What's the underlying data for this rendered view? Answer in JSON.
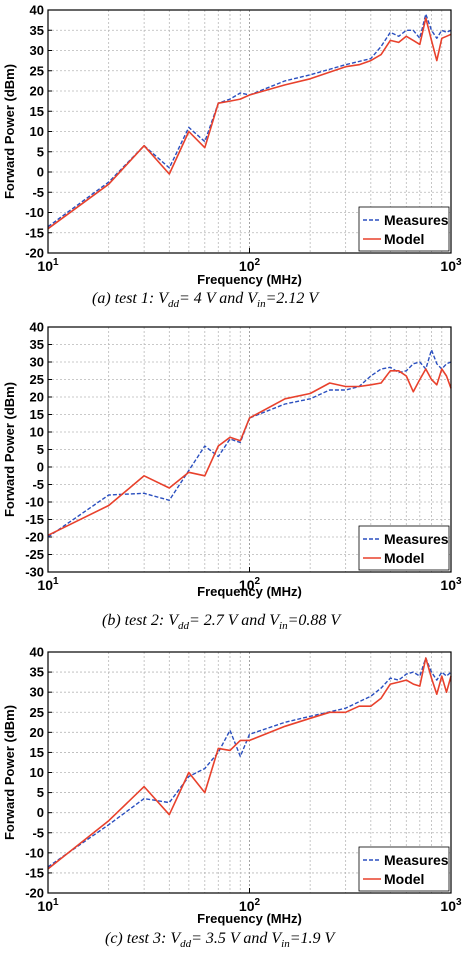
{
  "chart_data": [
    {
      "type": "line",
      "panel": "a",
      "ylabel": "Forward Power (dBm)",
      "xlabel": "Frequency (MHz)",
      "xscale": "log",
      "xlim": [
        10,
        1000
      ],
      "ylim": [
        -20,
        40
      ],
      "yticks": [
        -20,
        -15,
        -10,
        -5,
        0,
        5,
        10,
        15,
        20,
        25,
        30,
        35,
        40
      ],
      "grid": true,
      "legend_position": "bottom-right",
      "series": [
        {
          "name": "Measures",
          "color": "#2a4fbf",
          "style": "dashed",
          "points": [
            [
              10,
              -13.5
            ],
            [
              20,
              -2.5
            ],
            [
              30,
              6.5
            ],
            [
              40,
              1
            ],
            [
              50,
              11
            ],
            [
              60,
              7.5
            ],
            [
              70,
              17
            ],
            [
              80,
              18
            ],
            [
              90,
              19.5
            ],
            [
              100,
              19
            ],
            [
              150,
              22.5
            ],
            [
              200,
              24
            ],
            [
              300,
              26.5
            ],
            [
              400,
              28
            ],
            [
              450,
              31
            ],
            [
              500,
              34.5
            ],
            [
              550,
              33.5
            ],
            [
              600,
              35
            ],
            [
              650,
              35
            ],
            [
              700,
              33
            ],
            [
              750,
              39
            ],
            [
              800,
              35
            ],
            [
              850,
              33
            ],
            [
              900,
              35
            ],
            [
              950,
              34.5
            ],
            [
              1000,
              35
            ]
          ]
        },
        {
          "name": "Model",
          "color": "#e8412c",
          "style": "solid",
          "points": [
            [
              10,
              -14
            ],
            [
              20,
              -3
            ],
            [
              30,
              6.5
            ],
            [
              40,
              -0.5
            ],
            [
              50,
              10
            ],
            [
              60,
              6
            ],
            [
              70,
              17
            ],
            [
              80,
              17.5
            ],
            [
              90,
              18
            ],
            [
              100,
              19
            ],
            [
              150,
              21.5
            ],
            [
              200,
              23
            ],
            [
              300,
              26
            ],
            [
              350,
              26.5
            ],
            [
              400,
              27.5
            ],
            [
              450,
              29
            ],
            [
              500,
              32.5
            ],
            [
              550,
              32
            ],
            [
              600,
              33.5
            ],
            [
              650,
              32.5
            ],
            [
              700,
              31.5
            ],
            [
              750,
              38
            ],
            [
              800,
              32.5
            ],
            [
              850,
              27.5
            ],
            [
              900,
              33
            ],
            [
              950,
              33.5
            ],
            [
              1000,
              34
            ]
          ]
        }
      ],
      "caption": {
        "label": "(a)",
        "text": "test 1: ",
        "v1": "V",
        "v1_sub": "dd",
        "v1_val": "= 4 V and ",
        "v2": "V",
        "v2_sub": "in",
        "v2_val": "=2.12 V"
      }
    },
    {
      "type": "line",
      "panel": "b",
      "ylabel": "Forward Power (dBm)",
      "xlabel": "Frequency (MHz)",
      "xscale": "log",
      "xlim": [
        10,
        1000
      ],
      "ylim": [
        -30,
        40
      ],
      "yticks": [
        -30,
        -25,
        -20,
        -15,
        -10,
        -5,
        0,
        5,
        10,
        15,
        20,
        25,
        30,
        35,
        40
      ],
      "grid": true,
      "legend_position": "bottom-right",
      "series": [
        {
          "name": "Measures",
          "color": "#2a4fbf",
          "style": "dashed",
          "points": [
            [
              10,
              -20
            ],
            [
              20,
              -8
            ],
            [
              30,
              -7.5
            ],
            [
              40,
              -9.5
            ],
            [
              50,
              -1
            ],
            [
              60,
              6
            ],
            [
              70,
              3
            ],
            [
              80,
              8
            ],
            [
              90,
              7
            ],
            [
              100,
              14
            ],
            [
              150,
              18
            ],
            [
              200,
              19.5
            ],
            [
              250,
              22
            ],
            [
              300,
              22
            ],
            [
              350,
              23
            ],
            [
              400,
              26
            ],
            [
              450,
              28
            ],
            [
              500,
              28.5
            ],
            [
              550,
              27
            ],
            [
              600,
              27.5
            ],
            [
              650,
              29.5
            ],
            [
              700,
              30
            ],
            [
              750,
              28
            ],
            [
              800,
              33.5
            ],
            [
              850,
              29.5
            ],
            [
              900,
              28
            ],
            [
              950,
              29.5
            ],
            [
              1000,
              30
            ]
          ]
        },
        {
          "name": "Model",
          "color": "#e8412c",
          "style": "solid",
          "points": [
            [
              10,
              -19.5
            ],
            [
              20,
              -11
            ],
            [
              30,
              -2.5
            ],
            [
              40,
              -6
            ],
            [
              50,
              -1.5
            ],
            [
              60,
              -2.5
            ],
            [
              70,
              6
            ],
            [
              80,
              8.5
            ],
            [
              90,
              7.5
            ],
            [
              100,
              14
            ],
            [
              150,
              19.5
            ],
            [
              200,
              21
            ],
            [
              250,
              24
            ],
            [
              300,
              23
            ],
            [
              350,
              23
            ],
            [
              400,
              23.5
            ],
            [
              450,
              24
            ],
            [
              500,
              27.5
            ],
            [
              550,
              27.5
            ],
            [
              600,
              26
            ],
            [
              650,
              21.5
            ],
            [
              700,
              25
            ],
            [
              750,
              28
            ],
            [
              800,
              25
            ],
            [
              850,
              23.5
            ],
            [
              900,
              28
            ],
            [
              950,
              26
            ],
            [
              1000,
              22.5
            ]
          ]
        }
      ],
      "caption": {
        "label": "(b)",
        "text": "test 2: ",
        "v1": "V",
        "v1_sub": "dd",
        "v1_val": "= 2.7 V and ",
        "v2": "V",
        "v2_sub": "in",
        "v2_val": "=0.88 V"
      }
    },
    {
      "type": "line",
      "panel": "c",
      "ylabel": "Forward Power (dBm)",
      "xlabel": "Frequency (MHz)",
      "xscale": "log",
      "xlim": [
        10,
        1000
      ],
      "ylim": [
        -20,
        40
      ],
      "yticks": [
        -20,
        -15,
        -10,
        -5,
        0,
        5,
        10,
        15,
        20,
        25,
        30,
        35,
        40
      ],
      "grid": true,
      "legend_position": "bottom-right",
      "series": [
        {
          "name": "Measures",
          "color": "#2a4fbf",
          "style": "dashed",
          "points": [
            [
              10,
              -13.5
            ],
            [
              20,
              -3
            ],
            [
              30,
              3.5
            ],
            [
              40,
              2.5
            ],
            [
              50,
              9
            ],
            [
              60,
              11
            ],
            [
              70,
              15
            ],
            [
              80,
              20.5
            ],
            [
              90,
              14
            ],
            [
              100,
              19.5
            ],
            [
              150,
              22.5
            ],
            [
              200,
              24
            ],
            [
              300,
              26
            ],
            [
              400,
              29
            ],
            [
              450,
              31
            ],
            [
              500,
              33.5
            ],
            [
              550,
              33
            ],
            [
              600,
              34.5
            ],
            [
              650,
              35
            ],
            [
              700,
              34
            ],
            [
              750,
              38.5
            ],
            [
              800,
              35
            ],
            [
              850,
              33
            ],
            [
              900,
              35
            ],
            [
              950,
              34
            ],
            [
              1000,
              35
            ]
          ]
        },
        {
          "name": "Model",
          "color": "#e8412c",
          "style": "solid",
          "points": [
            [
              10,
              -14
            ],
            [
              20,
              -2
            ],
            [
              30,
              6.5
            ],
            [
              40,
              -0.5
            ],
            [
              50,
              10
            ],
            [
              60,
              5
            ],
            [
              70,
              16
            ],
            [
              80,
              15.5
            ],
            [
              90,
              18
            ],
            [
              100,
              18
            ],
            [
              150,
              21.5
            ],
            [
              200,
              23.5
            ],
            [
              250,
              25
            ],
            [
              300,
              25
            ],
            [
              350,
              26.5
            ],
            [
              400,
              26.5
            ],
            [
              450,
              28.5
            ],
            [
              500,
              32
            ],
            [
              550,
              32.5
            ],
            [
              600,
              33
            ],
            [
              650,
              32
            ],
            [
              700,
              31.5
            ],
            [
              750,
              38.5
            ],
            [
              800,
              33.5
            ],
            [
              850,
              29.5
            ],
            [
              900,
              34
            ],
            [
              950,
              30
            ],
            [
              1000,
              34
            ]
          ]
        }
      ],
      "caption": {
        "label": "(c)",
        "text": "test 3: ",
        "v1": "V",
        "v1_sub": "dd",
        "v1_val": "= 3.5 V and ",
        "v2": "V",
        "v2_sub": "in",
        "v2_val": "=1.9 V"
      }
    }
  ]
}
